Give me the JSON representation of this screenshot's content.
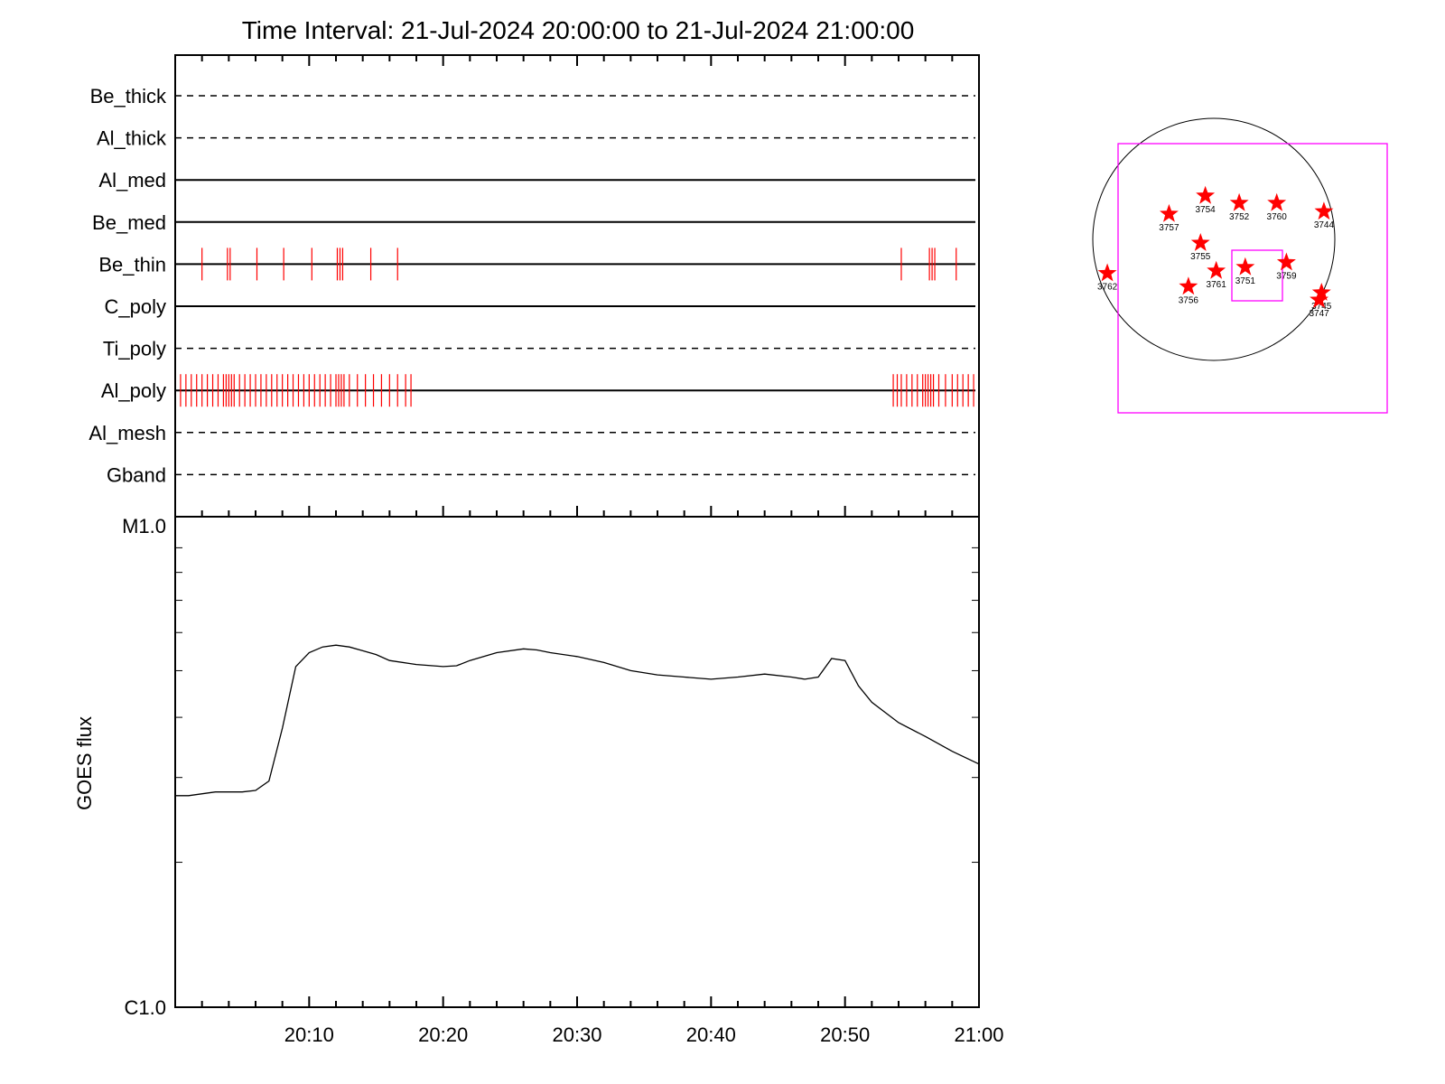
{
  "chart_data": [
    {
      "type": "timeline",
      "title": "Time Interval: 21-Jul-2024 20:00:00 to 21-Jul-2024 21:00:00",
      "time_range_minutes": [
        0,
        60
      ],
      "rows": [
        {
          "label": "Be_thick",
          "style": "dashed",
          "events": []
        },
        {
          "label": "Al_thick",
          "style": "dashed",
          "events": []
        },
        {
          "label": "Al_med",
          "style": "solid",
          "events": []
        },
        {
          "label": "Be_med",
          "style": "solid",
          "events": []
        },
        {
          "label": "Be_thin",
          "style": "solid",
          "events": [
            2.0,
            3.9,
            4.1,
            6.1,
            8.1,
            10.2,
            12.1,
            12.3,
            12.5,
            14.6,
            16.6,
            54.2,
            56.3,
            56.5,
            56.7,
            58.3
          ]
        },
        {
          "label": "C_poly",
          "style": "solid",
          "events": []
        },
        {
          "label": "Ti_poly",
          "style": "dashed",
          "events": []
        },
        {
          "label": "Al_poly",
          "style": "solid",
          "events": [
            0.4,
            0.8,
            1.2,
            1.6,
            2.0,
            2.4,
            2.8,
            3.2,
            3.6,
            3.8,
            4.0,
            4.2,
            4.4,
            4.8,
            5.2,
            5.6,
            6.0,
            6.4,
            6.8,
            7.2,
            7.6,
            8.0,
            8.4,
            8.8,
            9.2,
            9.6,
            10.0,
            10.4,
            10.8,
            11.2,
            11.6,
            12.0,
            12.2,
            12.4,
            12.6,
            13.0,
            13.6,
            14.2,
            14.8,
            15.4,
            16.0,
            16.6,
            17.2,
            17.6,
            53.6,
            53.9,
            54.2,
            54.6,
            55.0,
            55.4,
            55.8,
            56.0,
            56.2,
            56.4,
            56.6,
            57.0,
            57.5,
            58.0,
            58.4,
            58.8,
            59.2,
            59.6
          ]
        },
        {
          "label": "Al_mesh",
          "style": "dashed",
          "events": []
        },
        {
          "label": "Gband",
          "style": "dashed",
          "events": []
        }
      ],
      "event_color": "#ff0000"
    },
    {
      "type": "line",
      "ylabel": "GOES flux",
      "yscale": "log",
      "yticks": [
        {
          "label": "M1.0",
          "value": 1e-05
        },
        {
          "label": "C1.0",
          "value": 1e-06
        }
      ],
      "ylim": [
        1e-06,
        1e-05
      ],
      "xlim_minutes": [
        0,
        60
      ],
      "xtick_labels": [
        {
          "label": "20:10",
          "minute": 10
        },
        {
          "label": "20:20",
          "minute": 20
        },
        {
          "label": "20:30",
          "minute": 30
        },
        {
          "label": "20:40",
          "minute": 40
        },
        {
          "label": "20:50",
          "minute": 50
        },
        {
          "label": "21:00",
          "minute": 60
        }
      ],
      "series": [
        {
          "x": [
            0,
            1,
            3,
            5,
            6,
            7,
            8,
            9,
            10,
            11,
            12,
            13,
            14,
            15,
            16,
            18,
            20,
            21,
            22,
            24,
            26,
            27,
            28,
            30,
            32,
            34,
            36,
            38,
            40,
            42,
            44,
            46,
            47,
            48,
            49,
            50,
            51,
            52,
            54,
            56,
            58,
            60
          ],
          "y": [
            2.75e-06,
            2.75e-06,
            2.8e-06,
            2.8e-06,
            2.82e-06,
            2.95e-06,
            3.8e-06,
            5.1e-06,
            5.45e-06,
            5.6e-06,
            5.65e-06,
            5.6e-06,
            5.5e-06,
            5.4e-06,
            5.25e-06,
            5.15e-06,
            5.1e-06,
            5.12e-06,
            5.25e-06,
            5.45e-06,
            5.55e-06,
            5.52e-06,
            5.45e-06,
            5.35e-06,
            5.2e-06,
            5e-06,
            4.9e-06,
            4.85e-06,
            4.8e-06,
            4.85e-06,
            4.92e-06,
            4.85e-06,
            4.8e-06,
            4.85e-06,
            5.3e-06,
            5.25e-06,
            4.65e-06,
            4.3e-06,
            3.9e-06,
            3.65e-06,
            3.4e-06,
            3.2e-06
          ]
        }
      ]
    },
    {
      "type": "scatter",
      "description_labels_only": true,
      "points": [
        {
          "label": "3757",
          "x": -0.37,
          "y": 0.21
        },
        {
          "label": "3754",
          "x": -0.07,
          "y": 0.36
        },
        {
          "label": "3752",
          "x": 0.21,
          "y": 0.3
        },
        {
          "label": "3760",
          "x": 0.52,
          "y": 0.3
        },
        {
          "label": "3744",
          "x": 0.91,
          "y": 0.23
        },
        {
          "label": "3755",
          "x": -0.11,
          "y": -0.03
        },
        {
          "label": "3761",
          "x": 0.02,
          "y": -0.26
        },
        {
          "label": "3751",
          "x": 0.26,
          "y": -0.23
        },
        {
          "label": "3759",
          "x": 0.6,
          "y": -0.19
        },
        {
          "label": "3762",
          "x": -0.88,
          "y": -0.28
        },
        {
          "label": "3756",
          "x": -0.21,
          "y": -0.39
        },
        {
          "label": "3745",
          "x": 0.89,
          "y": -0.44
        },
        {
          "label": "3747",
          "x": 0.87,
          "y": -0.5
        }
      ],
      "marker_color": "#ff0000",
      "box_color": "#ff00ff"
    }
  ]
}
